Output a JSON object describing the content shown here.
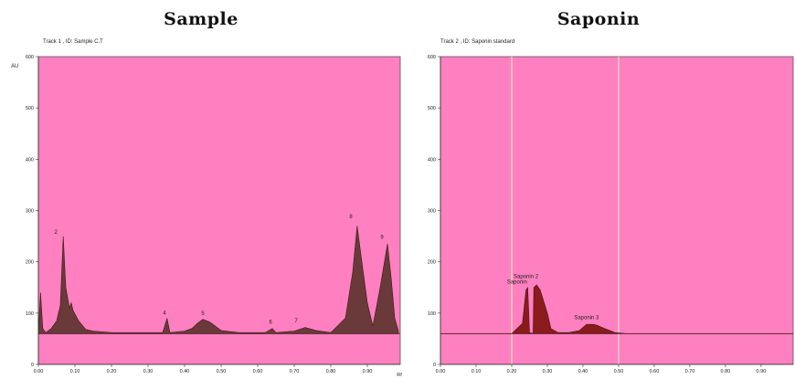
{
  "chart_data": [
    {
      "type": "area",
      "title": "Sample",
      "subtitle": "Track 1 , ID: Sample C.T",
      "ylabel": "AU",
      "xlabel": "Rf",
      "xlim": [
        0.0,
        0.99
      ],
      "ylim": [
        0,
        600
      ],
      "x_ticks": [
        "0.00",
        "0.10",
        "0.20",
        "0.30",
        "0.40",
        "0.50",
        "0.60",
        "0.70",
        "0.80",
        "0.90"
      ],
      "y_ticks": [
        "0",
        "100",
        "200",
        "300",
        "400",
        "500",
        "600"
      ],
      "background": "#ff80c0",
      "fill_color": "#6a3a3a",
      "baseline": 60,
      "series": [
        {
          "points": [
            [
              0.0,
              60
            ],
            [
              0.006,
              140
            ],
            [
              0.012,
              70
            ],
            [
              0.02,
              62
            ],
            [
              0.035,
              70
            ],
            [
              0.05,
              85
            ],
            [
              0.06,
              115
            ],
            [
              0.068,
              250
            ],
            [
              0.075,
              150
            ],
            [
              0.085,
              110
            ],
            [
              0.09,
              120
            ],
            [
              0.095,
              105
            ],
            [
              0.11,
              85
            ],
            [
              0.13,
              68
            ],
            [
              0.15,
              65
            ],
            [
              0.2,
              62
            ],
            [
              0.3,
              62
            ],
            [
              0.34,
              62
            ],
            [
              0.352,
              90
            ],
            [
              0.36,
              62
            ],
            [
              0.4,
              65
            ],
            [
              0.42,
              70
            ],
            [
              0.435,
              80
            ],
            [
              0.45,
              88
            ],
            [
              0.47,
              82
            ],
            [
              0.5,
              66
            ],
            [
              0.55,
              62
            ],
            [
              0.62,
              62
            ],
            [
              0.64,
              70
            ],
            [
              0.65,
              62
            ],
            [
              0.7,
              65
            ],
            [
              0.73,
              72
            ],
            [
              0.76,
              66
            ],
            [
              0.8,
              62
            ],
            [
              0.84,
              90
            ],
            [
              0.86,
              180
            ],
            [
              0.872,
              270
            ],
            [
              0.885,
              200
            ],
            [
              0.9,
              120
            ],
            [
              0.915,
              75
            ],
            [
              0.935,
              150
            ],
            [
              0.955,
              235
            ],
            [
              0.965,
              170
            ],
            [
              0.975,
              90
            ],
            [
              0.985,
              65
            ]
          ]
        }
      ],
      "peaks": [
        {
          "label": "2",
          "x": 0.048,
          "y": 255
        },
        {
          "label": "4",
          "x": 0.345,
          "y": 97
        },
        {
          "label": "5",
          "x": 0.45,
          "y": 96
        },
        {
          "label": "6",
          "x": 0.635,
          "y": 79
        },
        {
          "label": "7",
          "x": 0.705,
          "y": 82
        },
        {
          "label": "8",
          "x": 0.855,
          "y": 285
        },
        {
          "label": "9",
          "x": 0.94,
          "y": 245
        }
      ]
    },
    {
      "type": "area",
      "title": "Saponin",
      "subtitle": "Track 2 , ID: Saponin standard",
      "xlim": [
        0.0,
        0.99
      ],
      "ylim": [
        0,
        600
      ],
      "x_ticks": [
        "0.00",
        "0.10",
        "0.20",
        "0.30",
        "0.40",
        "0.50",
        "0.60",
        "0.70",
        "0.80",
        "0.90"
      ],
      "y_ticks": [
        "0",
        "100",
        "200",
        "300",
        "400",
        "500",
        "600"
      ],
      "background": "#ff80c0",
      "fill_color": "#8b1a1a",
      "baseline": 60,
      "vlines": [
        0.2,
        0.5
      ],
      "series": [
        {
          "points": [
            [
              0.0,
              60
            ],
            [
              0.2,
              60
            ],
            [
              0.23,
              80
            ],
            [
              0.24,
              145
            ],
            [
              0.245,
              150
            ],
            [
              0.25,
              62
            ],
            [
              0.26,
              60
            ],
            [
              0.262,
              150
            ],
            [
              0.27,
              155
            ],
            [
              0.28,
              145
            ],
            [
              0.3,
              100
            ],
            [
              0.31,
              70
            ],
            [
              0.33,
              62
            ],
            [
              0.36,
              62
            ],
            [
              0.39,
              66
            ],
            [
              0.41,
              78
            ],
            [
              0.43,
              78
            ],
            [
              0.44,
              76
            ],
            [
              0.46,
              70
            ],
            [
              0.49,
              62
            ],
            [
              0.52,
              60
            ],
            [
              0.99,
              60
            ]
          ]
        }
      ],
      "peaks": [
        {
          "label": "Saponin",
          "x": 0.215,
          "y": 158
        },
        {
          "label": "Saponin 2",
          "x": 0.24,
          "y": 168
        },
        {
          "label": "Saponin 3",
          "x": 0.41,
          "y": 88
        }
      ]
    }
  ]
}
